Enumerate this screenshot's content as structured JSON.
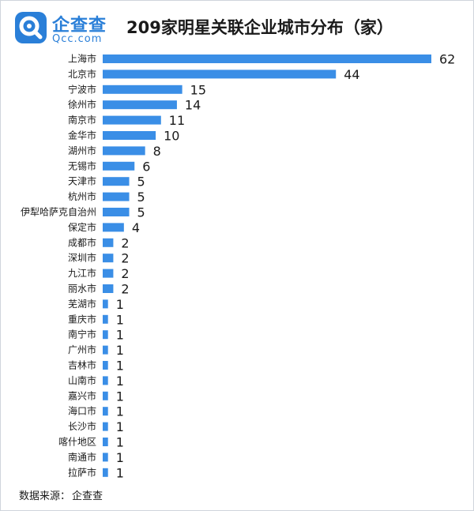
{
  "logo": {
    "cn": "企查查",
    "en": "Qcc.com"
  },
  "title": "209家明星关联企业城市分布（家）",
  "source": {
    "label": "数据来源：",
    "value": "企查查"
  },
  "colors": {
    "bar": "#3a8ee6",
    "brand": "#2a7fd8",
    "text": "#1a1a1a"
  },
  "chart_data": {
    "type": "bar",
    "orientation": "horizontal",
    "title": "209家明星关联企业城市分布（家）",
    "categories": [
      "上海市",
      "北京市",
      "宁波市",
      "徐州市",
      "南京市",
      "金华市",
      "湖州市",
      "无锡市",
      "天津市",
      "杭州市",
      "伊犁哈萨克自治州",
      "保定市",
      "成都市",
      "深圳市",
      "九江市",
      "丽水市",
      "芜湖市",
      "重庆市",
      "南宁市",
      "广州市",
      "吉林市",
      "山南市",
      "嘉兴市",
      "海口市",
      "长沙市",
      "喀什地区",
      "南通市",
      "拉萨市"
    ],
    "values": [
      62,
      44,
      15,
      14,
      11,
      10,
      8,
      6,
      5,
      5,
      5,
      4,
      2,
      2,
      2,
      2,
      1,
      1,
      1,
      1,
      1,
      1,
      1,
      1,
      1,
      1,
      1,
      1
    ],
    "xlabel": "",
    "ylabel": "",
    "xlim": [
      0,
      62
    ],
    "grid": false,
    "data_labels": true
  }
}
